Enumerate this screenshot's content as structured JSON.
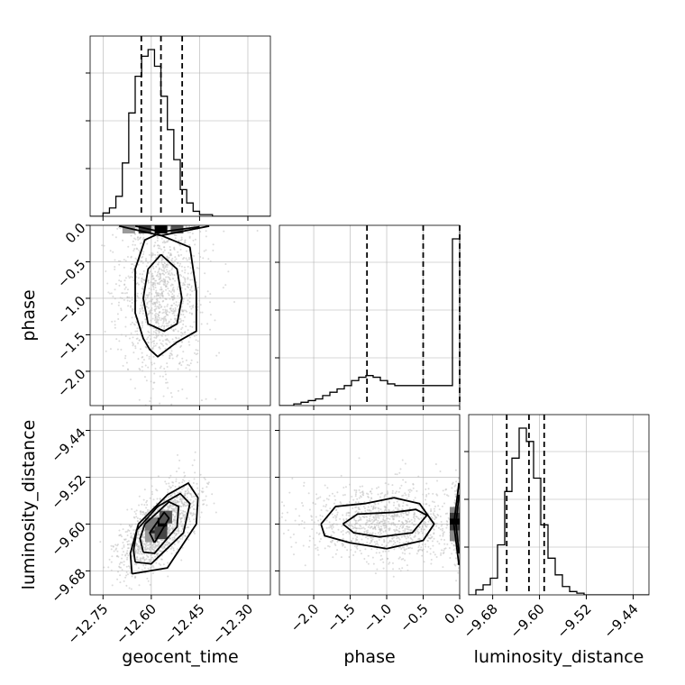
{
  "chart_data": {
    "type": "corner",
    "parameters": [
      "geocent_time",
      "phase",
      "luminosity_distance"
    ],
    "axis_labels": {
      "x": [
        "geocent_time",
        "phase",
        "luminosity_distance"
      ],
      "y": [
        "phase",
        "luminosity_distance"
      ]
    },
    "axis_ranges": {
      "geocent_time": [
        -12.79,
        -12.23
      ],
      "phase": [
        -2.47,
        0.0
      ],
      "luminosity_distance": [
        -9.721,
        -9.413
      ]
    },
    "ticks": {
      "geocent_time": {
        "values": [
          -12.75,
          -12.6,
          -12.45,
          -12.3
        ],
        "labels": [
          "−12.75",
          "−12.60",
          "−12.45",
          "−12.30"
        ]
      },
      "phase": {
        "values": [
          -2.0,
          -1.5,
          -1.0,
          -0.5,
          0.0
        ],
        "labels": [
          "−2.0",
          "−1.5",
          "−1.0",
          "−0.5",
          "0.0"
        ]
      },
      "luminosity_distance": {
        "values": [
          -9.68,
          -9.6,
          -9.52,
          -9.44
        ],
        "labels": [
          "−9.68",
          "−9.60",
          "−9.52",
          "−9.44"
        ]
      }
    },
    "grid": true,
    "colors": {
      "line": "#000000",
      "grid": "#b0b0b0",
      "scatter": "#bdbdbd"
    },
    "histograms": [
      {
        "parameter": "geocent_time",
        "bin_start": -12.79,
        "bin_width": 0.02,
        "counts": [
          0,
          0,
          2,
          5,
          12,
          32,
          62,
          84,
          96,
          100,
          90,
          72,
          52,
          34,
          16,
          8,
          3,
          1,
          1,
          0,
          0,
          0,
          0,
          0,
          0,
          0,
          0,
          0
        ],
        "quantiles": [
          -12.631,
          -12.57,
          -12.504
        ]
      },
      {
        "parameter": "phase",
        "bin_start": -2.47,
        "bin_width": 0.0988,
        "counts": [
          0,
          0,
          1,
          2,
          3,
          4,
          6,
          8,
          10,
          12,
          15,
          17,
          18,
          17,
          15,
          13,
          12,
          12,
          12,
          12,
          12,
          12,
          12,
          12,
          100
        ],
        "quantiles": [
          -1.27,
          -0.5,
          0.0
        ]
      },
      {
        "parameter": "luminosity_distance",
        "bin_start": -9.721,
        "bin_width": 0.01232,
        "counts": [
          0,
          3,
          6,
          10,
          30,
          62,
          82,
          100,
          92,
          70,
          42,
          22,
          12,
          5,
          2,
          1,
          0,
          0,
          0,
          0,
          0,
          0,
          0,
          0,
          0
        ],
        "quantiles": [
          -9.656,
          -9.618,
          -9.592
        ]
      }
    ],
    "panels_2d": [
      {
        "x": "geocent_time",
        "y": "phase",
        "density_mean": [
          -12.57,
          -0.9
        ],
        "density_spread": [
          0.05,
          0.5
        ],
        "peak_bins": [
          [
            -12.67,
            -0.01
          ],
          [
            -12.62,
            -0.01
          ],
          [
            -12.57,
            -0.01
          ],
          [
            -12.52,
            -0.01
          ]
        ],
        "contours": [
          [
            [
              -12.57,
              -0.4
            ],
            [
              -12.52,
              -0.6
            ],
            [
              -12.505,
              -1.0
            ],
            [
              -12.52,
              -1.35
            ],
            [
              -12.56,
              -1.45
            ],
            [
              -12.61,
              -1.35
            ],
            [
              -12.625,
              -1.0
            ],
            [
              -12.61,
              -0.6
            ],
            [
              -12.57,
              -0.4
            ]
          ],
          [
            [
              -12.58,
              -0.12
            ],
            [
              -12.48,
              -0.3
            ],
            [
              -12.46,
              -0.9
            ],
            [
              -12.46,
              -1.45
            ],
            [
              -12.52,
              -1.6
            ],
            [
              -12.58,
              -1.8
            ],
            [
              -12.605,
              -1.7
            ],
            [
              -12.625,
              -1.55
            ],
            [
              -12.65,
              -1.2
            ],
            [
              -12.65,
              -0.6
            ],
            [
              -12.62,
              -0.2
            ],
            [
              -12.58,
              -0.12
            ]
          ],
          [
            [
              -12.65,
              -0.01
            ],
            [
              -12.57,
              -0.09
            ],
            [
              -12.45,
              -0.02
            ]
          ],
          [
            [
              -12.7,
              -0.01
            ],
            [
              -12.57,
              -0.14
            ],
            [
              -12.42,
              -0.01
            ]
          ]
        ]
      },
      {
        "x": "geocent_time",
        "y": "luminosity_distance",
        "density_mean": [
          -12.575,
          -9.607
        ],
        "density_spread": [
          0.045,
          0.028
        ],
        "correlation": 0.6,
        "contours": [
          [
            [
              -12.59,
              -9.632
            ],
            [
              -12.545,
              -9.59
            ],
            [
              -12.56,
              -9.58
            ],
            [
              -12.605,
              -9.615
            ],
            [
              -12.59,
              -9.632
            ]
          ],
          [
            [
              -12.625,
              -9.648
            ],
            [
              -12.59,
              -9.65
            ],
            [
              -12.52,
              -9.605
            ],
            [
              -12.515,
              -9.57
            ],
            [
              -12.545,
              -9.562
            ],
            [
              -12.62,
              -9.6
            ],
            [
              -12.635,
              -9.625
            ],
            [
              -12.625,
              -9.648
            ]
          ],
          [
            [
              -12.65,
              -9.665
            ],
            [
              -12.6,
              -9.668
            ],
            [
              -12.5,
              -9.615
            ],
            [
              -12.48,
              -9.565
            ],
            [
              -12.51,
              -9.548
            ],
            [
              -12.58,
              -9.57
            ],
            [
              -12.645,
              -9.61
            ],
            [
              -12.655,
              -9.645
            ],
            [
              -12.65,
              -9.665
            ]
          ],
          [
            [
              -12.66,
              -9.685
            ],
            [
              -12.55,
              -9.675
            ],
            [
              -12.46,
              -9.6
            ],
            [
              -12.455,
              -9.555
            ],
            [
              -12.485,
              -9.53
            ],
            [
              -12.55,
              -9.55
            ],
            [
              -12.64,
              -9.6
            ],
            [
              -12.665,
              -9.65
            ],
            [
              -12.66,
              -9.685
            ]
          ]
        ]
      },
      {
        "x": "phase",
        "y": "luminosity_distance",
        "density_mean": [
          -0.95,
          -9.6
        ],
        "density_spread": [
          0.45,
          0.025
        ],
        "edge_bins": [
          -9.58,
          -9.59,
          -9.6,
          -9.61,
          -9.62
        ],
        "contours": [
          [
            [
              -1.6,
              -9.6
            ],
            [
              -1.4,
              -9.583
            ],
            [
              -0.9,
              -9.58
            ],
            [
              -0.6,
              -9.575
            ],
            [
              -0.45,
              -9.585
            ],
            [
              -0.65,
              -9.615
            ],
            [
              -1.1,
              -9.622
            ],
            [
              -1.45,
              -9.615
            ],
            [
              -1.6,
              -9.6
            ]
          ],
          [
            [
              -1.9,
              -9.6
            ],
            [
              -1.7,
              -9.57
            ],
            [
              -1.3,
              -9.565
            ],
            [
              -0.9,
              -9.555
            ],
            [
              -0.55,
              -9.565
            ],
            [
              -0.35,
              -9.6
            ],
            [
              -0.5,
              -9.628
            ],
            [
              -1.0,
              -9.642
            ],
            [
              -1.5,
              -9.632
            ],
            [
              -1.85,
              -9.62
            ],
            [
              -1.9,
              -9.6
            ]
          ],
          [
            [
              -0.01,
              -9.55
            ],
            [
              -0.05,
              -9.6
            ],
            [
              -0.01,
              -9.65
            ]
          ],
          [
            [
              -0.01,
              -9.53
            ],
            [
              -0.08,
              -9.6
            ],
            [
              -0.01,
              -9.67
            ]
          ]
        ]
      }
    ]
  }
}
